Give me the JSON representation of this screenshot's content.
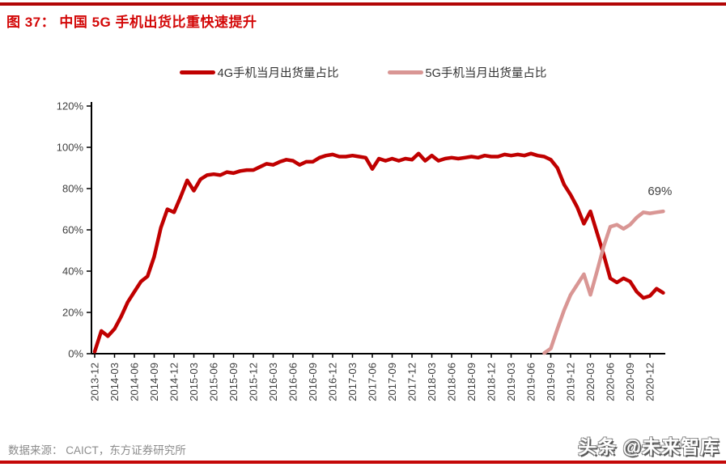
{
  "page": {
    "title": "图 37： 中国 5G 手机出货比重快速提升",
    "source": "数据来源： CAICT，东方证券研究所",
    "watermark": "头条 @未来智库"
  },
  "colors": {
    "top_rule": "#b20505",
    "bottom_rule": "#c40808",
    "title_red": "#d30808",
    "axis": "#000000",
    "tick_text": "#404040",
    "source_text": "#8c8c8c"
  },
  "chart_data": {
    "type": "line",
    "title": "中国 5G 手机出货比重快速提升",
    "xlabel": "",
    "ylabel": "",
    "ylim": [
      0,
      120
    ],
    "grid": false,
    "legend_position": "top",
    "y_tick_labels": [
      "0%",
      "20%",
      "40%",
      "60%",
      "80%",
      "100%",
      "120%"
    ],
    "x_tick_labels": [
      "2013-12",
      "2014-03",
      "2014-06",
      "2014-09",
      "2014-12",
      "2015-03",
      "2015-06",
      "2015-09",
      "2015-12",
      "2016-03",
      "2016-06",
      "2016-09",
      "2016-12",
      "2017-03",
      "2017-06",
      "2017-09",
      "2017-12",
      "2018-03",
      "2018-06",
      "2018-09",
      "2018-12",
      "2019-03",
      "2019-06",
      "2019-09",
      "2019-12",
      "2020-03",
      "2020-06",
      "2020-09",
      "2020-12"
    ],
    "months": [
      "2013-12",
      "2014-01",
      "2014-02",
      "2014-03",
      "2014-04",
      "2014-05",
      "2014-06",
      "2014-07",
      "2014-08",
      "2014-09",
      "2014-10",
      "2014-11",
      "2014-12",
      "2015-01",
      "2015-02",
      "2015-03",
      "2015-04",
      "2015-05",
      "2015-06",
      "2015-07",
      "2015-08",
      "2015-09",
      "2015-10",
      "2015-11",
      "2015-12",
      "2016-01",
      "2016-02",
      "2016-03",
      "2016-04",
      "2016-05",
      "2016-06",
      "2016-07",
      "2016-08",
      "2016-09",
      "2016-10",
      "2016-11",
      "2016-12",
      "2017-01",
      "2017-02",
      "2017-03",
      "2017-04",
      "2017-05",
      "2017-06",
      "2017-07",
      "2017-08",
      "2017-09",
      "2017-10",
      "2017-11",
      "2017-12",
      "2018-01",
      "2018-02",
      "2018-03",
      "2018-04",
      "2018-05",
      "2018-06",
      "2018-07",
      "2018-08",
      "2018-09",
      "2018-10",
      "2018-11",
      "2018-12",
      "2019-01",
      "2019-02",
      "2019-03",
      "2019-04",
      "2019-05",
      "2019-06",
      "2019-07",
      "2019-08",
      "2019-09",
      "2019-10",
      "2019-11",
      "2019-12",
      "2020-01",
      "2020-02",
      "2020-03",
      "2020-04",
      "2020-05",
      "2020-06",
      "2020-07",
      "2020-08",
      "2020-09",
      "2020-10",
      "2020-11",
      "2020-12",
      "2021-01",
      "2021-02"
    ],
    "series": [
      {
        "name": "4G手机当月出货量占比",
        "color": "#c00000",
        "values": [
          1,
          11,
          8.5,
          12,
          18,
          25,
          30,
          35,
          37.5,
          47,
          61,
          70,
          68.5,
          76,
          84,
          79,
          84.5,
          86.5,
          87,
          86.5,
          88,
          87.5,
          88.5,
          89,
          89,
          90.5,
          92,
          91.5,
          93,
          94,
          93.5,
          91.5,
          93,
          93,
          95,
          96,
          96.5,
          95.5,
          95.5,
          96,
          95.5,
          95,
          89.5,
          94.5,
          93.5,
          94.5,
          93.5,
          94.5,
          94,
          97,
          93.5,
          96,
          93.5,
          94.5,
          95,
          94.5,
          95,
          95.5,
          95,
          96,
          95.5,
          95.5,
          96.5,
          96,
          96.5,
          96,
          97,
          96,
          95.5,
          94,
          90,
          82,
          77,
          71,
          63,
          69,
          58.5,
          48,
          36.5,
          34.5,
          36.5,
          35,
          30,
          27,
          28,
          31.5,
          29.5
        ]
      },
      {
        "name": "5G手机当月出货量占比",
        "color": "#d99694",
        "values": [
          null,
          null,
          null,
          null,
          null,
          null,
          null,
          null,
          null,
          null,
          null,
          null,
          null,
          null,
          null,
          null,
          null,
          null,
          null,
          null,
          null,
          null,
          null,
          null,
          null,
          null,
          null,
          null,
          null,
          null,
          null,
          null,
          null,
          null,
          null,
          null,
          null,
          null,
          null,
          null,
          null,
          null,
          null,
          null,
          null,
          null,
          null,
          null,
          null,
          null,
          null,
          null,
          null,
          null,
          null,
          null,
          null,
          null,
          null,
          null,
          null,
          null,
          null,
          null,
          null,
          null,
          null,
          null,
          0.3,
          2.5,
          12,
          21,
          28.5,
          33.5,
          38.5,
          28.5,
          40,
          52,
          61.5,
          62.5,
          60.5,
          62.5,
          66,
          68.5,
          68,
          68.5,
          69
        ]
      }
    ],
    "annotation": {
      "text": "69%",
      "series": "5G手机当月出货量占比",
      "month": "2021-02",
      "value": 69
    }
  }
}
